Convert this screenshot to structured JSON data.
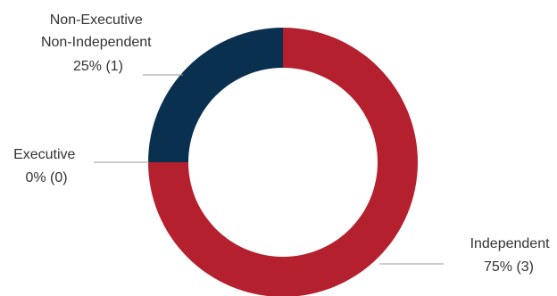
{
  "chart_data": {
    "type": "pie",
    "variant": "donut",
    "categories": [
      "Independent",
      "Executive",
      "Non-Executive Non-Independent"
    ],
    "values": [
      3,
      0,
      1
    ],
    "percents": [
      75,
      0,
      25
    ],
    "colors": [
      "#b5202e",
      "#b5202e",
      "#0a3050"
    ],
    "labels": [
      {
        "lines": [
          "Independent",
          "75% (3)"
        ],
        "align": "right"
      },
      {
        "lines": [
          "Executive",
          "0% (0)"
        ],
        "align": "left"
      },
      {
        "lines": [
          "Non-Executive",
          "Non-Independent",
          "25% (1)"
        ],
        "align": "left"
      }
    ]
  }
}
